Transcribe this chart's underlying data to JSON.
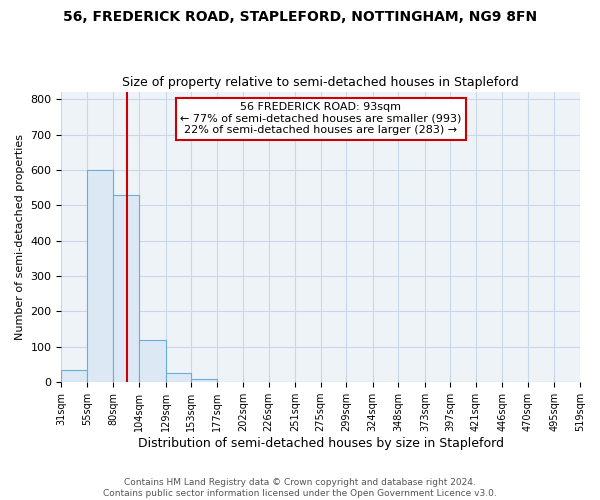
{
  "title1": "56, FREDERICK ROAD, STAPLEFORD, NOTTINGHAM, NG9 8FN",
  "title2": "Size of property relative to semi-detached houses in Stapleford",
  "xlabel": "Distribution of semi-detached houses by size in Stapleford",
  "ylabel": "Number of semi-detached properties",
  "bin_edges": [
    31,
    55,
    80,
    104,
    129,
    153,
    177,
    202,
    226,
    251,
    275,
    299,
    324,
    348,
    373,
    397,
    421,
    446,
    470,
    495,
    519
  ],
  "bar_heights": [
    35,
    600,
    530,
    120,
    25,
    10,
    0,
    0,
    0,
    0,
    0,
    0,
    0,
    0,
    0,
    0,
    0,
    0,
    0,
    0
  ],
  "bar_color": "#dce9f5",
  "bar_edgecolor": "#6aaed6",
  "property_size": 93,
  "red_line_color": "#cc0000",
  "annotation_line1": "56 FREDERICK ROAD: 93sqm",
  "annotation_line2": "← 77% of semi-detached houses are smaller (993)",
  "annotation_line3": "22% of semi-detached houses are larger (283) →",
  "annotation_box_color": "#ffffff",
  "annotation_box_edgecolor": "#cc0000",
  "ylim": [
    0,
    820
  ],
  "yticks": [
    0,
    100,
    200,
    300,
    400,
    500,
    600,
    700,
    800
  ],
  "tick_labels": [
    "31sqm",
    "55sqm",
    "80sqm",
    "104sqm",
    "129sqm",
    "153sqm",
    "177sqm",
    "202sqm",
    "226sqm",
    "251sqm",
    "275sqm",
    "299sqm",
    "324sqm",
    "348sqm",
    "373sqm",
    "397sqm",
    "421sqm",
    "446sqm",
    "470sqm",
    "495sqm",
    "519sqm"
  ],
  "footer_text": "Contains HM Land Registry data © Crown copyright and database right 2024.\nContains public sector information licensed under the Open Government Licence v3.0.",
  "grid_color": "#c8d8e8",
  "bg_color": "#eef3f8"
}
